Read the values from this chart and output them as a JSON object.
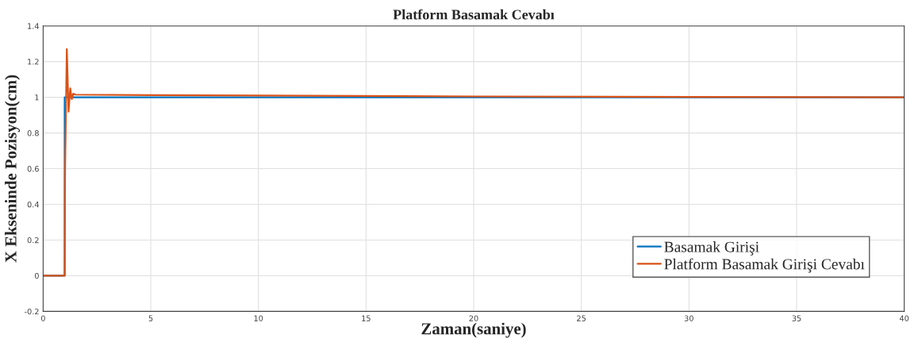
{
  "chart_data": {
    "type": "line",
    "title": "Platform Basamak Cevabı",
    "xlabel": "Zaman(saniye)",
    "ylabel": "X Ekseninde Pozisyon(cm)",
    "series": [
      {
        "name": "Basamak Girişi",
        "color": "#0072bd",
        "x": [
          0,
          1,
          1,
          40
        ],
        "values": [
          0,
          0,
          1,
          1
        ]
      },
      {
        "name": "Platform Basamak Girişi Cevabı",
        "color": "#d95319",
        "x": [
          0,
          1,
          1.02,
          1.1,
          1.18,
          1.26,
          1.33,
          1.4,
          1.5,
          5,
          10,
          20,
          30,
          40
        ],
        "values": [
          0,
          0,
          0.6,
          1.27,
          0.92,
          1.05,
          0.99,
          1.02,
          1.015,
          1.012,
          1.01,
          1.005,
          1.002,
          1.0
        ]
      }
    ],
    "xlim": [
      0,
      40
    ],
    "xticks": [
      0,
      5,
      10,
      15,
      20,
      25,
      30,
      35,
      40
    ],
    "ylim": [
      -0.2,
      1.4
    ],
    "yticks": [
      -0.2,
      0,
      0.2,
      0.4,
      0.6,
      0.8,
      1,
      1.2,
      1.4
    ],
    "grid": true,
    "legend": "bottom right",
    "line_style": "solid",
    "marker": "none"
  }
}
